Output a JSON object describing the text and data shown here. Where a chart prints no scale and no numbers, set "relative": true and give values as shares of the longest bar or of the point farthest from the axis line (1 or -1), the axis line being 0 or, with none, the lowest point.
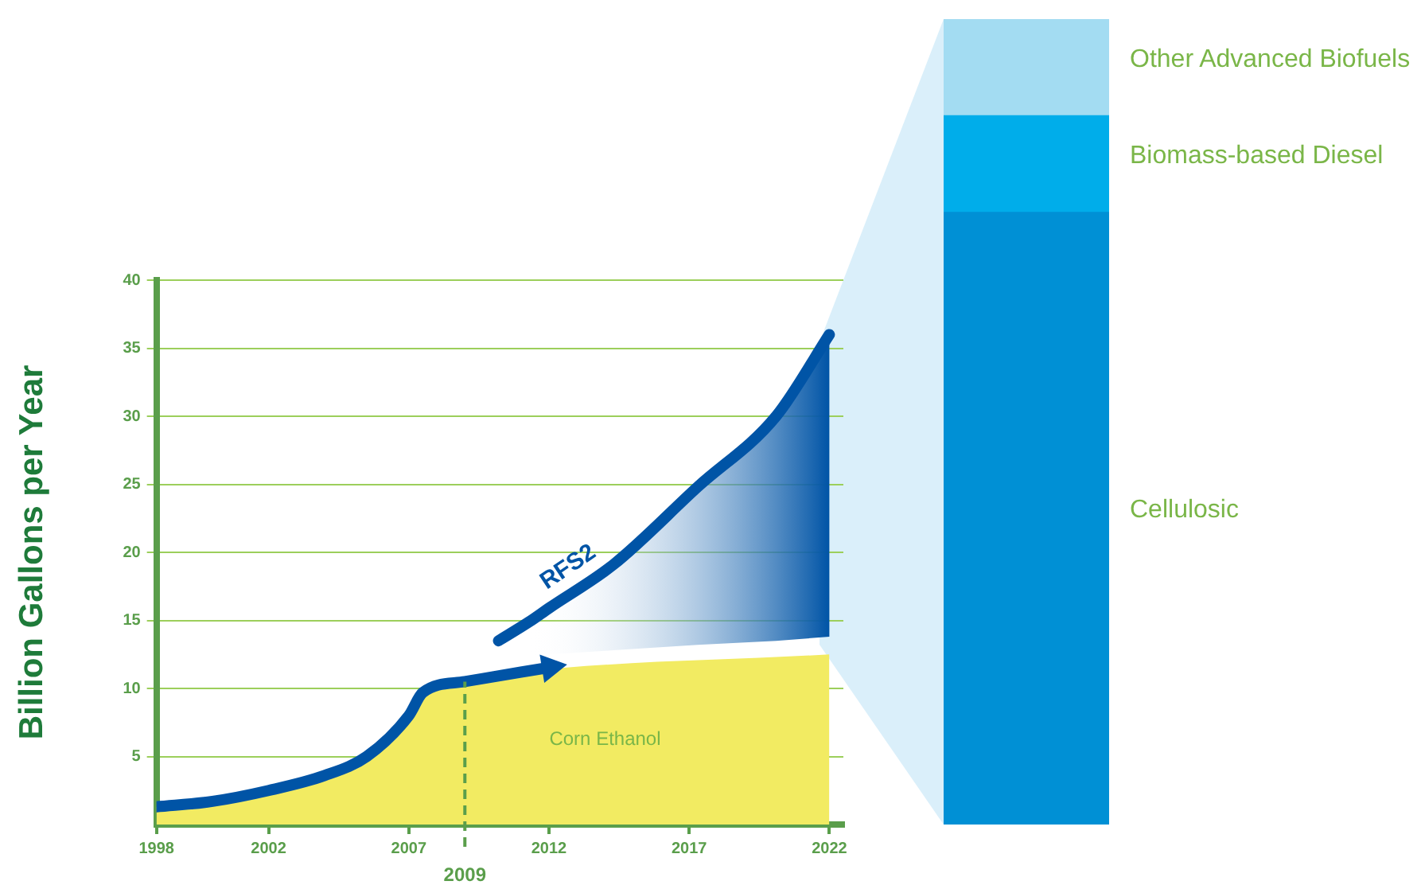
{
  "chart_data": [
    {
      "type": "line",
      "ylabel": "Billion Gallons per Year",
      "xlim": [
        1998,
        2022.5
      ],
      "xticks": [
        1998,
        2002,
        2007,
        2012,
        2017,
        2022
      ],
      "ylim": [
        0,
        40
      ],
      "yticks": [
        5,
        10,
        15,
        20,
        25,
        30,
        35,
        40
      ],
      "grid": "y",
      "legend": false,
      "marker": "none",
      "series": [
        {
          "name": "Corn Ethanol",
          "type": "area",
          "color": "#f2eb62",
          "x": [
            1998,
            2000,
            2002,
            2004,
            2005.5,
            2007,
            2007.5,
            2009,
            2011,
            2022
          ],
          "values": [
            1.3,
            1.7,
            2.5,
            3.6,
            5,
            8,
            9.7,
            10.5,
            11.2,
            12.5
          ]
        },
        {
          "type": "line",
          "color": "#0054a6",
          "x": [
            1998,
            2000,
            2002,
            2004,
            2005.5,
            2007,
            2007.5,
            2009,
            2011,
            2012.2
          ],
          "values": [
            1.3,
            1.7,
            2.5,
            3.6,
            5,
            8,
            9.7,
            10.5,
            11.2,
            11.6
          ]
        },
        {
          "name": "RFS2",
          "type": "line",
          "color": "#0054a6",
          "x": [
            2010.2,
            2011.3,
            2012,
            2014.3,
            2017.3,
            2020.1,
            2022
          ],
          "values": [
            13.5,
            14.9,
            15.9,
            19.1,
            24.8,
            30,
            36
          ],
          "lower": [
            null,
            12.4,
            12.5,
            12.8,
            13.2,
            13.5,
            13.8
          ],
          "upper": [
            null,
            14.9,
            15.9,
            19.1,
            24.8,
            30,
            36
          ]
        }
      ],
      "ref_lines": [
        {
          "axis": "x",
          "value": 2009,
          "label": "2009",
          "color": "#5a9e4b",
          "line_style": "dashed"
        }
      ]
    },
    {
      "type": "bar",
      "stacked": true,
      "relative": true,
      "legend": false,
      "categories": [
        null
      ],
      "series": [
        {
          "name": "Cellulosic",
          "color": "#0090d5",
          "values": [
            0.76
          ]
        },
        {
          "name": "Biomass-based Diesel",
          "color": "#00adea",
          "values": [
            0.12
          ]
        },
        {
          "name": "Other Advanced Biofuels",
          "color": "#a3dcf2",
          "values": [
            0.12
          ]
        }
      ]
    }
  ]
}
